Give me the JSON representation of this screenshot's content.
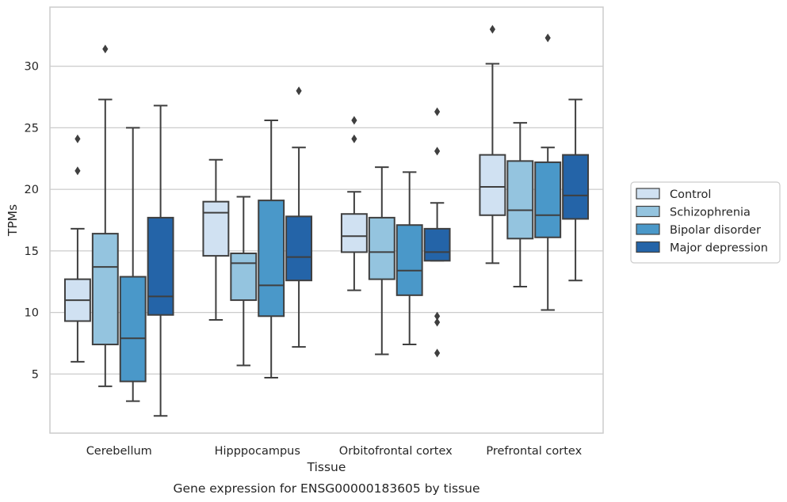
{
  "chart_data": {
    "type": "box",
    "xlabel": "Tissue",
    "ylabel": "TPMs",
    "caption": "Gene expression for ENSG00000183605 by tissue",
    "ylim": [
      0.2,
      34.8
    ],
    "yticks": [
      5,
      10,
      15,
      20,
      25,
      30
    ],
    "grid": "horizontal",
    "legend_position": "right",
    "categories": [
      "Cerebellum",
      "Hipppocampus",
      "Orbitofrontal cortex",
      "Prefrontal cortex"
    ],
    "series": [
      {
        "name": "Control",
        "color": "#d0e1f2",
        "boxes": [
          {
            "whislo": 6.0,
            "q1": 9.3,
            "med": 11.0,
            "q3": 12.7,
            "whishi": 16.8,
            "fliers": [
              21.5,
              24.1
            ]
          },
          {
            "whislo": 9.4,
            "q1": 14.6,
            "med": 18.1,
            "q3": 19.0,
            "whishi": 22.4,
            "fliers": []
          },
          {
            "whislo": 11.8,
            "q1": 14.9,
            "med": 16.2,
            "q3": 18.0,
            "whishi": 19.8,
            "fliers": [
              24.1,
              25.6
            ]
          },
          {
            "whislo": 14.0,
            "q1": 17.9,
            "med": 20.2,
            "q3": 22.8,
            "whishi": 30.2,
            "fliers": [
              33.0
            ]
          }
        ]
      },
      {
        "name": "Schizophrenia",
        "color": "#94c4df",
        "boxes": [
          {
            "whislo": 4.0,
            "q1": 7.4,
            "med": 13.7,
            "q3": 16.4,
            "whishi": 27.3,
            "fliers": [
              31.4
            ]
          },
          {
            "whislo": 5.7,
            "q1": 11.0,
            "med": 14.0,
            "q3": 14.8,
            "whishi": 19.4,
            "fliers": []
          },
          {
            "whislo": 6.6,
            "q1": 12.7,
            "med": 14.9,
            "q3": 17.7,
            "whishi": 21.8,
            "fliers": []
          },
          {
            "whislo": 12.1,
            "q1": 16.0,
            "med": 18.3,
            "q3": 22.3,
            "whishi": 25.4,
            "fliers": []
          }
        ]
      },
      {
        "name": "Bipolar disorder",
        "color": "#4a98c9",
        "boxes": [
          {
            "whislo": 2.8,
            "q1": 4.4,
            "med": 7.9,
            "q3": 12.9,
            "whishi": 25.0,
            "fliers": []
          },
          {
            "whislo": 4.7,
            "q1": 9.7,
            "med": 12.2,
            "q3": 19.1,
            "whishi": 25.6,
            "fliers": []
          },
          {
            "whislo": 7.4,
            "q1": 11.4,
            "med": 13.4,
            "q3": 17.1,
            "whishi": 21.4,
            "fliers": []
          },
          {
            "whislo": 10.2,
            "q1": 16.1,
            "med": 17.9,
            "q3": 22.2,
            "whishi": 23.4,
            "fliers": [
              32.3
            ]
          }
        ]
      },
      {
        "name": "Major depression",
        "color": "#2464a8",
        "boxes": [
          {
            "whislo": 1.6,
            "q1": 9.8,
            "med": 11.3,
            "q3": 17.7,
            "whishi": 26.8,
            "fliers": []
          },
          {
            "whislo": 7.2,
            "q1": 12.6,
            "med": 14.5,
            "q3": 17.8,
            "whishi": 23.4,
            "fliers": [
              28.0
            ]
          },
          {
            "whislo": 14.2,
            "q1": 14.2,
            "med": 14.9,
            "q3": 16.8,
            "whishi": 18.9,
            "fliers": [
              6.7,
              9.2,
              9.7,
              23.1,
              26.3
            ]
          },
          {
            "whislo": 12.6,
            "q1": 17.6,
            "med": 19.5,
            "q3": 22.8,
            "whishi": 27.3,
            "fliers": []
          }
        ]
      }
    ]
  }
}
